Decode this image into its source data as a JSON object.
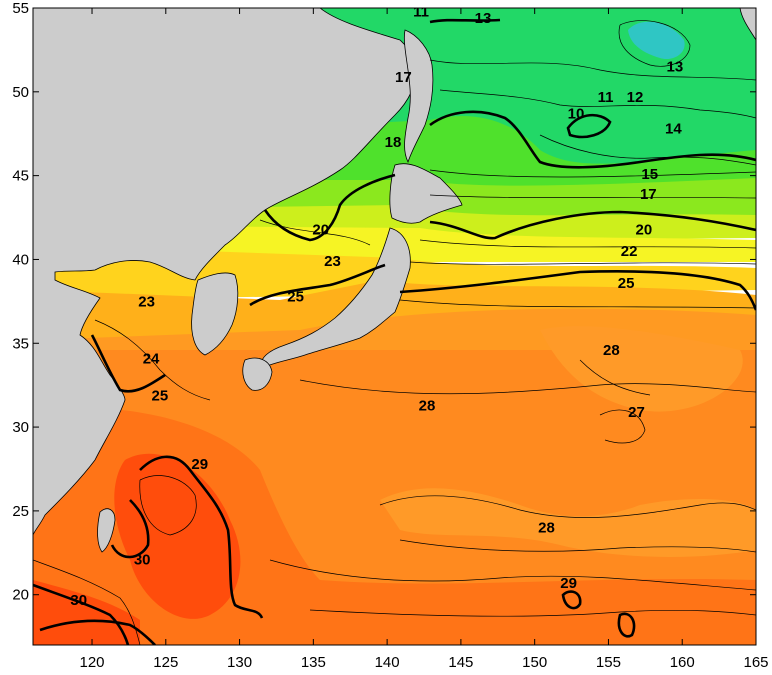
{
  "map": {
    "lon_range": [
      116,
      165
    ],
    "lat_range": [
      17,
      55
    ],
    "land_color": "#cccccc",
    "color_scale": [
      {
        "value": 10,
        "color": "#2bc9c1"
      },
      {
        "value": 13,
        "color": "#17d66e"
      },
      {
        "value": 15,
        "color": "#4ee22a"
      },
      {
        "value": 18,
        "color": "#86ea1c"
      },
      {
        "value": 20,
        "color": "#c8f01a"
      },
      {
        "value": 22,
        "color": "#f6f422"
      },
      {
        "value": 23,
        "color": "#ffd21c"
      },
      {
        "value": 25,
        "color": "#ffb21a"
      },
      {
        "value": 27,
        "color": "#ff9722"
      },
      {
        "value": 28,
        "color": "#ff8a1e"
      },
      {
        "value": 29,
        "color": "#ff6e14"
      },
      {
        "value": 30,
        "color": "#ff4a0a"
      }
    ],
    "x_ticks": [
      "120",
      "125",
      "130",
      "135",
      "140",
      "145",
      "150",
      "155",
      "160",
      "165"
    ],
    "y_ticks": [
      "20",
      "25",
      "30",
      "35",
      "40",
      "45",
      "50",
      "55"
    ],
    "contour_labels": [
      {
        "text": "11",
        "lon": 142.3,
        "lat": 54.5
      },
      {
        "text": "13",
        "lon": 146.5,
        "lat": 54.1
      },
      {
        "text": "13",
        "lon": 159.5,
        "lat": 51.2
      },
      {
        "text": "17",
        "lon": 141.1,
        "lat": 50.6
      },
      {
        "text": "10",
        "lon": 152.8,
        "lat": 48.4
      },
      {
        "text": "11",
        "lon": 154.8,
        "lat": 49.4
      },
      {
        "text": "12",
        "lon": 156.8,
        "lat": 49.4
      },
      {
        "text": "14",
        "lon": 159.4,
        "lat": 47.5
      },
      {
        "text": "18",
        "lon": 140.4,
        "lat": 46.7
      },
      {
        "text": "15",
        "lon": 157.8,
        "lat": 44.8
      },
      {
        "text": "17",
        "lon": 157.7,
        "lat": 43.6
      },
      {
        "text": "20",
        "lon": 135.5,
        "lat": 41.5
      },
      {
        "text": "20",
        "lon": 157.4,
        "lat": 41.5
      },
      {
        "text": "22",
        "lon": 156.4,
        "lat": 40.2
      },
      {
        "text": "23",
        "lon": 136.3,
        "lat": 39.6
      },
      {
        "text": "25",
        "lon": 156.2,
        "lat": 38.3
      },
      {
        "text": "25",
        "lon": 133.8,
        "lat": 37.5
      },
      {
        "text": "23",
        "lon": 123.7,
        "lat": 37.2
      },
      {
        "text": "24",
        "lon": 124.0,
        "lat": 33.8
      },
      {
        "text": "25",
        "lon": 124.6,
        "lat": 31.6
      },
      {
        "text": "28",
        "lon": 155.2,
        "lat": 34.3
      },
      {
        "text": "28",
        "lon": 142.7,
        "lat": 31.0
      },
      {
        "text": "27",
        "lon": 156.9,
        "lat": 30.6
      },
      {
        "text": "29",
        "lon": 127.3,
        "lat": 27.5
      },
      {
        "text": "28",
        "lon": 150.8,
        "lat": 23.7
      },
      {
        "text": "30",
        "lon": 123.4,
        "lat": 21.8
      },
      {
        "text": "29",
        "lon": 152.3,
        "lat": 20.4
      },
      {
        "text": "30",
        "lon": 119.1,
        "lat": 19.4
      }
    ]
  }
}
